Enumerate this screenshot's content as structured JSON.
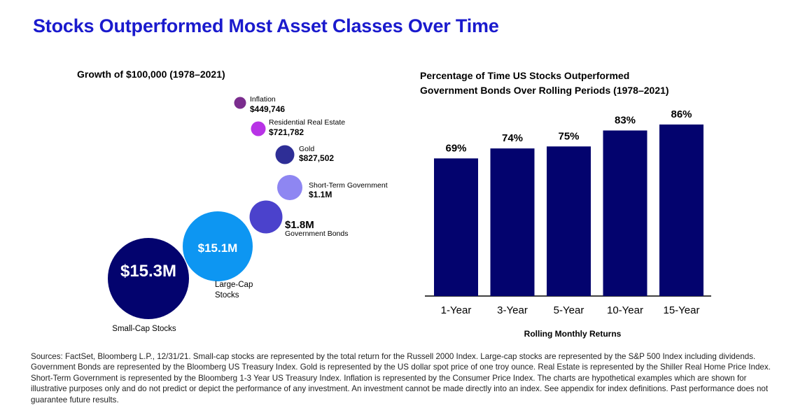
{
  "title": "Stocks Outperformed Most Asset Classes Over Time",
  "bubble_chart": {
    "subtitle": "Growth of $100,000 (1978–2021)",
    "items": [
      {
        "name": "Inflation",
        "value_label": "$449,746",
        "value": 449746,
        "color": "#7b2d8e"
      },
      {
        "name": "Residential Real Estate",
        "value_label": "$721,782",
        "value": 721782,
        "color": "#b833e6"
      },
      {
        "name": "Gold",
        "value_label": "$827,502",
        "value": 827502,
        "color": "#2e2e96"
      },
      {
        "name": "Short-Term Government",
        "value_label": "$1.1M",
        "value": 1100000,
        "color": "#8e86f2"
      },
      {
        "name": "Government Bonds",
        "value_label": "$1.8M",
        "value": 1800000,
        "color": "#4b42cc"
      },
      {
        "name": "Large-Cap Stocks",
        "value_label": "$15.1M",
        "value": 15100000,
        "color": "#0d96f2"
      },
      {
        "name": "Small-Cap Stocks",
        "value_label": "$15.3M",
        "value": 15300000,
        "color": "#03036e"
      }
    ]
  },
  "chart_data": {
    "type": "bar",
    "title": "Percentage of Time US Stocks Outperformed Government Bonds Over Rolling Periods (1978–2021)",
    "title_lines": [
      "Percentage of Time US Stocks Outperformed",
      "Government Bonds Over Rolling Periods (1978–2021)"
    ],
    "categories": [
      "1-Year",
      "3-Year",
      "5-Year",
      "10-Year",
      "15-Year"
    ],
    "values": [
      69,
      74,
      75,
      83,
      86
    ],
    "value_labels": [
      "69%",
      "74%",
      "75%",
      "83%",
      "86%"
    ],
    "xlabel": "Rolling Monthly Returns",
    "ylabel": "",
    "ylim": [
      0,
      100
    ],
    "bar_color": "#03036e"
  },
  "sources": "Sources: FactSet, Bloomberg L.P., 12/31/21. Small-cap stocks are represented by the total return for the Russell 2000 Index. Large-cap stocks are represented by the S&P 500 Index including dividends. Government Bonds are represented by the Bloomberg US Treasury Index. Gold is represented by the US dollar spot price of one troy ounce. Real Estate is represented by the Shiller Real Home Price Index. Short-Term Government is represented by the Bloomberg 1-3 Year US Treasury Index. Inflation is represented by the Consumer Price Index. The charts are hypothetical examples which are shown for illustrative purposes only and do not predict or depict the performance of any investment. An investment cannot be made directly into an index. See appendix for index definitions. Past performance does not guarantee future results."
}
